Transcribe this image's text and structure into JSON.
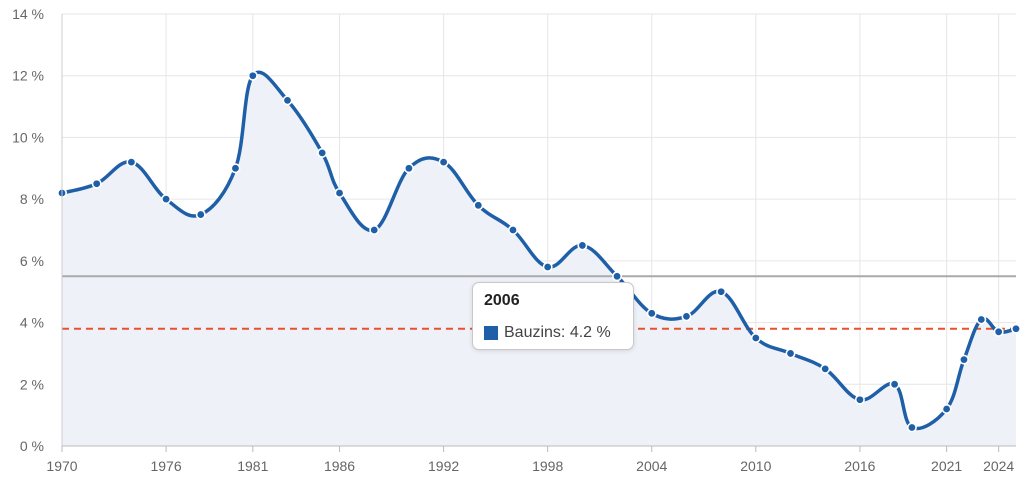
{
  "chart_data": {
    "type": "area",
    "x": [
      1970,
      1972,
      1974,
      1976,
      1978,
      1980,
      1981,
      1983,
      1985,
      1986,
      1988,
      1990,
      1992,
      1994,
      1996,
      1998,
      2000,
      2002,
      2004,
      2006,
      2008,
      2010,
      2012,
      2014,
      2016,
      2018,
      2019,
      2021,
      2022,
      2023,
      2024,
      2025
    ],
    "series": [
      {
        "name": "Bauzins",
        "color": "#1f5fa8",
        "values": [
          8.2,
          8.5,
          9.2,
          8.0,
          7.5,
          9.0,
          12.0,
          11.2,
          9.5,
          8.2,
          7.0,
          9.0,
          9.2,
          7.8,
          7.0,
          5.8,
          6.5,
          5.5,
          4.3,
          4.2,
          5.0,
          3.5,
          3.0,
          2.5,
          1.5,
          2.0,
          0.6,
          1.2,
          2.8,
          4.1,
          3.7,
          3.8
        ]
      }
    ],
    "xticks": [
      "1970",
      "1976",
      "1981",
      "1986",
      "1992",
      "1998",
      "2004",
      "2010",
      "2016",
      "2021",
      "2024"
    ],
    "yticks": [
      "0 %",
      "2 %",
      "4 %",
      "6 %",
      "8 %",
      "10 %",
      "12 %",
      "14 %"
    ],
    "ylim": [
      0,
      14
    ],
    "xlim": [
      1970,
      2025
    ],
    "grid": true,
    "reference_lines": [
      {
        "value": 5.5,
        "color": "#aaaaaa",
        "style": "solid"
      },
      {
        "value": 3.8,
        "color": "#e8502e",
        "style": "dashed"
      }
    ],
    "area_fill_color": "#eef2f8",
    "tooltip": {
      "title": "2006",
      "series": "Bauzins",
      "value": "4.2 %",
      "color": "#1f5fa8"
    }
  }
}
